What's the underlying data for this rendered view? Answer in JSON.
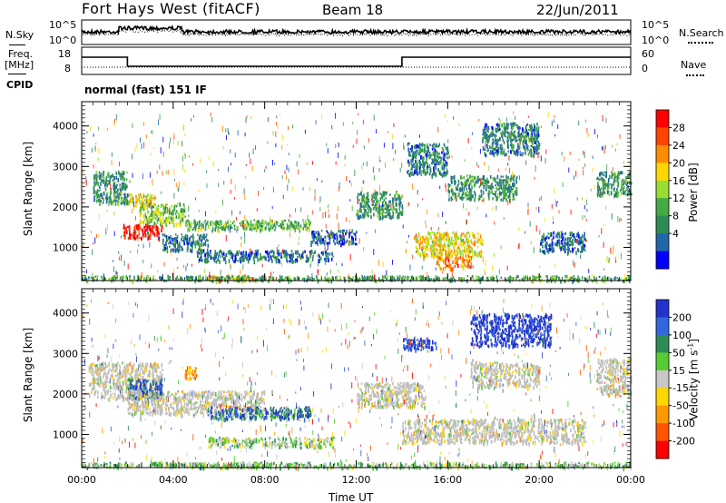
{
  "header": {
    "radar": "Fort Hays West (fitACF)",
    "beam": "Beam 18",
    "date": "22/Jun/2011"
  },
  "noise_panel": {
    "left_label": "N.Sky",
    "right_label": "N.Search",
    "left_ticks": [
      "10^5",
      "10^0"
    ],
    "right_ticks": [
      "10^5",
      "10^0"
    ]
  },
  "freq_panel": {
    "left_label_line1": "Freq.",
    "left_label_line2": "[MHz]",
    "left_ticks": [
      "18",
      "8"
    ],
    "right_label": "Nave",
    "right_ticks": [
      "60",
      "0"
    ],
    "cpid_label": "CPID",
    "mode_text": "normal (fast) 151 IF"
  },
  "chart_data": [
    {
      "type": "heatmap",
      "name": "power",
      "ylabel": "Slant Range [km]",
      "yticks": [
        1000,
        2000,
        3000,
        4000
      ],
      "ylim": [
        180,
        4600
      ],
      "colorbar_label": "Power [dB]",
      "colorbar_ticks": [
        "28",
        "24",
        "20",
        "16",
        "12",
        "8",
        "4"
      ],
      "colorbar_colors": [
        "#ff0000",
        "#ff4400",
        "#ff8c00",
        "#ffd700",
        "#99dd33",
        "#44aa44",
        "#2e8b57",
        "#2266aa",
        "#0000ff"
      ],
      "regions": [
        {
          "t": [
            0.5,
            2.0
          ],
          "r": [
            2100,
            2900
          ],
          "level": 0.3
        },
        {
          "t": [
            1.8,
            3.5
          ],
          "r": [
            1250,
            1600
          ],
          "level": 0.95
        },
        {
          "t": [
            2.0,
            3.2
          ],
          "r": [
            2000,
            2350
          ],
          "level": 0.6
        },
        {
          "t": [
            2.5,
            4.5
          ],
          "r": [
            1600,
            2100
          ],
          "level": 0.45
        },
        {
          "t": [
            3.5,
            5.5
          ],
          "r": [
            950,
            1350
          ],
          "level": 0.25
        },
        {
          "t": [
            4.5,
            10.0
          ],
          "r": [
            1450,
            1700
          ],
          "level": 0.4
        },
        {
          "t": [
            5.0,
            11.0
          ],
          "r": [
            680,
            950
          ],
          "level": 0.2
        },
        {
          "t": [
            5.5,
            7.5
          ],
          "r": [
            200,
            330
          ],
          "level": 0.7
        },
        {
          "t": [
            10.0,
            12.0
          ],
          "r": [
            1100,
            1450
          ],
          "level": 0.2
        },
        {
          "t": [
            12.0,
            14.0
          ],
          "r": [
            1750,
            2400
          ],
          "level": 0.3
        },
        {
          "t": [
            14.2,
            16.0
          ],
          "r": [
            2800,
            3600
          ],
          "level": 0.25
        },
        {
          "t": [
            14.5,
            17.5
          ],
          "r": [
            800,
            1400
          ],
          "level": 0.6
        },
        {
          "t": [
            15.5,
            17.0
          ],
          "r": [
            500,
            800
          ],
          "level": 0.75
        },
        {
          "t": [
            16.0,
            19.0
          ],
          "r": [
            2200,
            2800
          ],
          "level": 0.3
        },
        {
          "t": [
            17.5,
            20.0
          ],
          "r": [
            3300,
            4100
          ],
          "level": 0.25
        },
        {
          "t": [
            20.0,
            22.0
          ],
          "r": [
            900,
            1400
          ],
          "level": 0.2
        },
        {
          "t": [
            22.5,
            24.0
          ],
          "r": [
            2300,
            2900
          ],
          "level": 0.3
        },
        {
          "t": [
            0.0,
            24.0
          ],
          "r": [
            200,
            320
          ],
          "level": 0.35
        }
      ]
    },
    {
      "type": "heatmap",
      "name": "velocity",
      "ylabel": "Slant Range [km]",
      "yticks": [
        1000,
        2000,
        3000,
        4000
      ],
      "ylim": [
        180,
        4600
      ],
      "xlabel": "Time UT",
      "xticks": [
        "00:00",
        "04:00",
        "08:00",
        "12:00",
        "16:00",
        "20:00",
        "00:00"
      ],
      "xlim_hours": [
        0,
        24
      ],
      "colorbar_label": "Velocity [m s",
      "colorbar_label_sup": "-1",
      "colorbar_ticks": [
        "200",
        "100",
        "50",
        "15",
        "-15",
        "-50",
        "-100",
        "-200"
      ],
      "colorbar_colors": [
        "#2233cc",
        "#3366dd",
        "#2e8b57",
        "#55cc33",
        "#c8c8c8",
        "#ffd700",
        "#ff9900",
        "#ff5500",
        "#ff0000"
      ],
      "ground_scatter_color": "#bebebe",
      "regions": [
        {
          "t": [
            0.3,
            3.5
          ],
          "r": [
            1900,
            2800
          ],
          "level": 0.45
        },
        {
          "t": [
            2.0,
            3.5
          ],
          "r": [
            1900,
            2400
          ],
          "level": 0.85
        },
        {
          "t": [
            2.0,
            8.0
          ],
          "r": [
            1500,
            2100
          ],
          "level": 0.45
        },
        {
          "t": [
            4.5,
            5.0
          ],
          "r": [
            2400,
            2700
          ],
          "level": 0.3
        },
        {
          "t": [
            5.5,
            10.0
          ],
          "r": [
            1400,
            1700
          ],
          "level": 0.8
        },
        {
          "t": [
            5.5,
            11.0
          ],
          "r": [
            700,
            950
          ],
          "level": 0.55
        },
        {
          "t": [
            5.0,
            8.0
          ],
          "r": [
            200,
            330
          ],
          "level": 0.6
        },
        {
          "t": [
            12.0,
            15.0
          ],
          "r": [
            1700,
            2300
          ],
          "level": 0.45
        },
        {
          "t": [
            14.0,
            22.0
          ],
          "r": [
            800,
            1400
          ],
          "level": 0.45
        },
        {
          "t": [
            14.0,
            15.5
          ],
          "r": [
            3100,
            3400
          ],
          "level": 0.95
        },
        {
          "t": [
            17.0,
            20.5
          ],
          "r": [
            3200,
            4000
          ],
          "level": 0.95
        },
        {
          "t": [
            17.0,
            20.0
          ],
          "r": [
            2200,
            2800
          ],
          "level": 0.45
        },
        {
          "t": [
            22.5,
            24.0
          ],
          "r": [
            2000,
            2900
          ],
          "level": 0.45
        },
        {
          "t": [
            0.0,
            24.0
          ],
          "r": [
            200,
            330
          ],
          "level": 0.6
        }
      ]
    }
  ]
}
